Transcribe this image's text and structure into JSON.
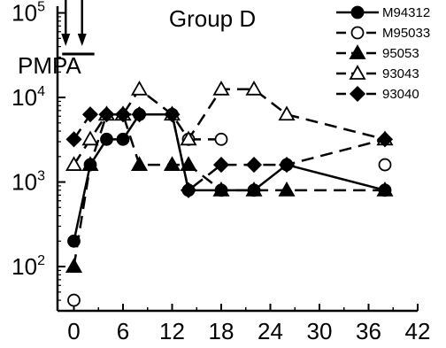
{
  "chart_data": {
    "type": "line",
    "title": "Group D",
    "annotation": "PMPA",
    "y_scale": "log",
    "xlim": [
      -2,
      42
    ],
    "ylim": [
      30,
      120000
    ],
    "x_ticks": [
      "0",
      "6",
      "12",
      "18",
      "24",
      "30",
      "36",
      "42"
    ],
    "y_ticks": [
      {
        "base": "10",
        "exp": "2",
        "value": 100
      },
      {
        "base": "10",
        "exp": "3",
        "value": 1000
      },
      {
        "base": "10",
        "exp": "4",
        "value": 10000
      },
      {
        "base": "10",
        "exp": "5",
        "value": 100000
      }
    ],
    "grid": false,
    "legend_position": "top-right",
    "treatment_days": [
      -1,
      1
    ],
    "series": [
      {
        "name": "M94312",
        "marker": "circle-filled",
        "dash": "solid",
        "x": [
          0,
          2,
          4,
          6,
          8,
          12,
          14,
          18,
          22,
          26,
          38
        ],
        "y": [
          200,
          1600,
          3200,
          3200,
          6300,
          6300,
          800,
          800,
          800,
          1600,
          800
        ]
      },
      {
        "name": "M95033",
        "marker": "circle-open",
        "dash": "dashed",
        "x": [
          0
        ],
        "y": [
          40
        ],
        "x2": [
          14,
          18
        ],
        "y2": [
          3200,
          3200
        ],
        "x3": [
          38
        ],
        "y3": [
          1600
        ]
      },
      {
        "name": "95053",
        "marker": "triangle-filled",
        "dash": "dashed",
        "x": [
          0,
          2,
          4,
          6,
          8,
          12,
          14,
          18,
          22,
          26,
          38
        ],
        "y": [
          100,
          1600,
          6300,
          6300,
          1600,
          1600,
          1600,
          800,
          800,
          800,
          800
        ]
      },
      {
        "name": "93043",
        "marker": "triangle-open",
        "dash": "dashed",
        "x": [
          0,
          2,
          4,
          6,
          8,
          12,
          14,
          18,
          22,
          26,
          38
        ],
        "y": [
          1600,
          3200,
          6300,
          6300,
          12500,
          6300,
          3200,
          12500,
          12500,
          6300,
          3200
        ]
      },
      {
        "name": "93040",
        "marker": "diamond-filled",
        "dash": "dashed",
        "x": [
          0,
          2,
          4,
          6,
          8,
          12,
          14,
          18,
          22,
          26,
          38
        ],
        "y": [
          3200,
          6300,
          6300,
          6300,
          6300,
          6300,
          800,
          1600,
          1600,
          1600,
          3200
        ]
      }
    ]
  }
}
